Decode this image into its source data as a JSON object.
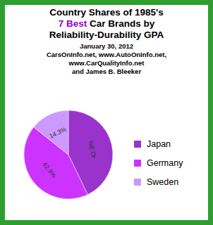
{
  "chart_data": {
    "type": "pie",
    "title": [
      "Country Shares of 1985's",
      "7 Best Car Brands by",
      "Reliability-Durability GPA"
    ],
    "subtitle": [
      "January 30, 2012",
      "CarsOnInfo.net, www.AutoOnInfo.net,",
      "www.CarQualityInfo.net",
      "and James B. Bleeker"
    ],
    "categories": [
      "Japan",
      "Germany",
      "Sweden"
    ],
    "values": [
      42.9,
      42.9,
      14.3
    ],
    "value_labels": [
      "42.9%",
      "42.9%",
      "14.3%"
    ],
    "colors": [
      "#9933cc",
      "#cc33ff",
      "#cc99ff"
    ],
    "data_labels": true,
    "legend": "right"
  }
}
